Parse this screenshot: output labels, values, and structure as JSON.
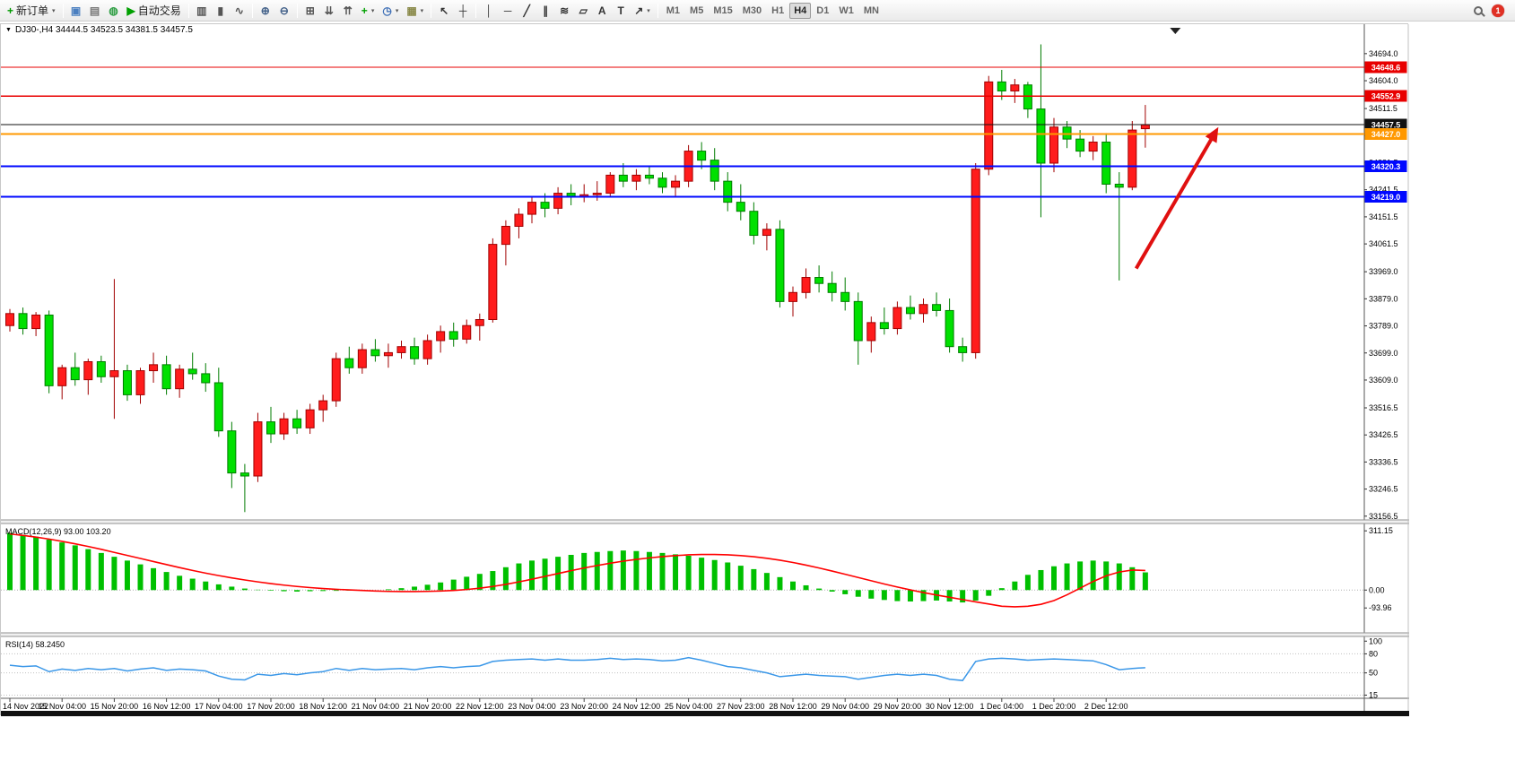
{
  "toolbar": {
    "buttons": [
      {
        "name": "new-order",
        "glyph": "+",
        "glyph_color": "#009900",
        "label": "新订单",
        "arrow": true
      },
      {
        "type": "sep"
      },
      {
        "name": "chart-window",
        "glyph": "▣",
        "glyph_color": "#4a7fc0"
      },
      {
        "name": "profiles",
        "glyph": "▤",
        "glyph_color": "#777777"
      },
      {
        "name": "market-watch",
        "glyph": "◍",
        "glyph_color": "#2f9e44"
      },
      {
        "name": "auto-trading",
        "glyph": "▶",
        "glyph_color": "#00a000",
        "label": "自动交易"
      },
      {
        "type": "sep"
      },
      {
        "name": "bar-chart-mode",
        "glyph": "▥",
        "glyph_color": "#555555"
      },
      {
        "name": "candlestick-mode",
        "glyph": "▮",
        "glyph_color": "#555555"
      },
      {
        "name": "line-chart-mode",
        "glyph": "∿",
        "glyph_color": "#555555"
      },
      {
        "type": "sep"
      },
      {
        "name": "zoom-in",
        "glyph": "⊕",
        "glyph_color": "#44628a"
      },
      {
        "name": "zoom-out",
        "glyph": "⊖",
        "glyph_color": "#44628a"
      },
      {
        "type": "sep"
      },
      {
        "name": "tile-windows",
        "glyph": "⊞",
        "glyph_color": "#555555"
      },
      {
        "name": "arrange-ascending",
        "glyph": "⇊",
        "glyph_color": "#555555"
      },
      {
        "name": "arrange-descending",
        "glyph": "⇈",
        "glyph_color": "#555555"
      },
      {
        "name": "indicators",
        "glyph": "+",
        "glyph_color": "#00a000",
        "arrow": true
      },
      {
        "name": "periods",
        "glyph": "◷",
        "glyph_color": "#3b6db5",
        "arrow": true
      },
      {
        "name": "templates",
        "glyph": "▦",
        "glyph_color": "#8a8a4a",
        "arrow": true
      },
      {
        "type": "sep"
      },
      {
        "name": "cursor",
        "glyph": "↖",
        "glyph_color": "#333333"
      },
      {
        "name": "crosshair",
        "glyph": "┼",
        "glyph_color": "#333333"
      },
      {
        "type": "sep"
      },
      {
        "name": "vertical-line",
        "glyph": "│",
        "glyph_color": "#333333"
      },
      {
        "name": "horizontal-line",
        "glyph": "─",
        "glyph_color": "#333333"
      },
      {
        "name": "trendline",
        "glyph": "╱",
        "glyph_color": "#333333"
      },
      {
        "name": "channel",
        "glyph": "∥",
        "glyph_color": "#333333"
      },
      {
        "name": "fibonacci",
        "glyph": "≋",
        "glyph_color": "#333333"
      },
      {
        "name": "shapes",
        "glyph": "▱",
        "glyph_color": "#333333"
      },
      {
        "name": "text",
        "glyph": "A",
        "glyph_color": "#333333"
      },
      {
        "name": "text-label",
        "glyph": "T",
        "glyph_color": "#333333"
      },
      {
        "name": "arrows-tool",
        "glyph": "↗",
        "glyph_color": "#333333",
        "arrow": true
      },
      {
        "type": "sep"
      }
    ],
    "timeframes": [
      "M1",
      "M5",
      "M15",
      "M30",
      "H1",
      "H4",
      "D1",
      "W1",
      "MN"
    ],
    "active_timeframe": "H4",
    "notification_count": "1"
  },
  "chart_header": {
    "ohlc_line": "DJ30-,H4  34444.5 34523.5 34381.5 34457.5"
  },
  "chart_data": {
    "type": "candlestick",
    "symbol": "DJ30-",
    "period": "H4",
    "ohlc": {
      "open": 34444.5,
      "high": 34523.5,
      "low": 34381.5,
      "close": 34457.5
    },
    "main": {
      "ylim": [
        33147,
        34774
      ],
      "up_fill": "#ff1c1c",
      "up_stroke": "#a00000",
      "down_fill": "#00e000",
      "down_stroke": "#007c00",
      "candles": [
        [
          33790,
          33845,
          33770,
          33830
        ],
        [
          33830,
          33850,
          33760,
          33780
        ],
        [
          33780,
          33835,
          33755,
          33825
        ],
        [
          33825,
          33840,
          33565,
          33590
        ],
        [
          33590,
          33660,
          33545,
          33650
        ],
        [
          33650,
          33700,
          33590,
          33610
        ],
        [
          33610,
          33680,
          33560,
          33670
        ],
        [
          33670,
          33690,
          33600,
          33620
        ],
        [
          33620,
          33945,
          33480,
          33640
        ],
        [
          33640,
          33660,
          33540,
          33560
        ],
        [
          33560,
          33650,
          33530,
          33640
        ],
        [
          33640,
          33700,
          33600,
          33660
        ],
        [
          33660,
          33690,
          33560,
          33580
        ],
        [
          33580,
          33660,
          33550,
          33645
        ],
        [
          33645,
          33700,
          33610,
          33630
        ],
        [
          33630,
          33665,
          33570,
          33600
        ],
        [
          33600,
          33650,
          33420,
          33440
        ],
        [
          33440,
          33470,
          33250,
          33300
        ],
        [
          33300,
          33330,
          33170,
          33290
        ],
        [
          33290,
          33500,
          33270,
          33470
        ],
        [
          33470,
          33520,
          33400,
          33430
        ],
        [
          33430,
          33500,
          33410,
          33480
        ],
        [
          33480,
          33510,
          33430,
          33450
        ],
        [
          33450,
          33530,
          33430,
          33510
        ],
        [
          33510,
          33560,
          33470,
          33540
        ],
        [
          33540,
          33700,
          33520,
          33680
        ],
        [
          33680,
          33720,
          33630,
          33650
        ],
        [
          33650,
          33730,
          33630,
          33710
        ],
        [
          33710,
          33745,
          33670,
          33690
        ],
        [
          33690,
          33730,
          33650,
          33700
        ],
        [
          33700,
          33740,
          33680,
          33720
        ],
        [
          33720,
          33750,
          33660,
          33680
        ],
        [
          33680,
          33760,
          33660,
          33740
        ],
        [
          33740,
          33790,
          33700,
          33770
        ],
        [
          33770,
          33800,
          33720,
          33745
        ],
        [
          33745,
          33810,
          33730,
          33790
        ],
        [
          33790,
          33830,
          33740,
          33810
        ],
        [
          33810,
          34080,
          33800,
          34060
        ],
        [
          34060,
          34140,
          33990,
          34120
        ],
        [
          34120,
          34180,
          34080,
          34160
        ],
        [
          34160,
          34220,
          34130,
          34200
        ],
        [
          34200,
          34230,
          34150,
          34180
        ],
        [
          34180,
          34250,
          34160,
          34230
        ],
        [
          34230,
          34260,
          34190,
          34220
        ],
        [
          34220,
          34260,
          34200,
          34225
        ],
        [
          34225,
          34270,
          34205,
          34230
        ],
        [
          34230,
          34300,
          34220,
          34290
        ],
        [
          34290,
          34330,
          34250,
          34270
        ],
        [
          34270,
          34310,
          34240,
          34290
        ],
        [
          34290,
          34320,
          34260,
          34280
        ],
        [
          34280,
          34300,
          34230,
          34250
        ],
        [
          34250,
          34290,
          34220,
          34270
        ],
        [
          34270,
          34390,
          34250,
          34370
        ],
        [
          34370,
          34400,
          34310,
          34340
        ],
        [
          34340,
          34380,
          34240,
          34270
        ],
        [
          34270,
          34300,
          34170,
          34200
        ],
        [
          34200,
          34260,
          34140,
          34170
        ],
        [
          34170,
          34200,
          34060,
          34090
        ],
        [
          34090,
          34130,
          34040,
          34110
        ],
        [
          34110,
          34140,
          33850,
          33870
        ],
        [
          33870,
          33920,
          33820,
          33900
        ],
        [
          33900,
          33980,
          33880,
          33950
        ],
        [
          33950,
          33990,
          33900,
          33930
        ],
        [
          33930,
          33970,
          33870,
          33900
        ],
        [
          33900,
          33950,
          33840,
          33870
        ],
        [
          33870,
          33900,
          33660,
          33740
        ],
        [
          33740,
          33820,
          33700,
          33800
        ],
        [
          33800,
          33850,
          33760,
          33780
        ],
        [
          33780,
          33870,
          33760,
          33850
        ],
        [
          33850,
          33890,
          33810,
          33830
        ],
        [
          33830,
          33880,
          33800,
          33860
        ],
        [
          33860,
          33900,
          33820,
          33840
        ],
        [
          33840,
          33880,
          33700,
          33720
        ],
        [
          33720,
          33750,
          33670,
          33700
        ],
        [
          33700,
          34330,
          33680,
          34310
        ],
        [
          34310,
          34620,
          34290,
          34600
        ],
        [
          34600,
          34640,
          34540,
          34570
        ],
        [
          34570,
          34610,
          34530,
          34590
        ],
        [
          34590,
          34600,
          34480,
          34510
        ],
        [
          34510,
          34725,
          34150,
          34330
        ],
        [
          34330,
          34480,
          34300,
          34450
        ],
        [
          34450,
          34470,
          34380,
          34410
        ],
        [
          34410,
          34440,
          34350,
          34370
        ],
        [
          34370,
          34420,
          34340,
          34400
        ],
        [
          34400,
          34430,
          34230,
          34260
        ],
        [
          34260,
          34300,
          33940,
          34250
        ],
        [
          34250,
          34470,
          34240,
          34440
        ],
        [
          34444.5,
          34523.5,
          34381.5,
          34457.5
        ]
      ],
      "y_ticks": [
        {
          "t": "34694.0",
          "v": 34694.0
        },
        {
          "t": "34604.0",
          "v": 34604.0
        },
        {
          "t": "34511.5",
          "v": 34511.5
        },
        {
          "t": "34421.5",
          "v": 34421.5
        },
        {
          "t": "34331.5",
          "v": 34331.5
        },
        {
          "t": "34241.5",
          "v": 34241.5
        },
        {
          "t": "34151.5",
          "v": 34151.5
        },
        {
          "t": "34061.5",
          "v": 34061.5
        },
        {
          "t": "33969.0",
          "v": 33969.0
        },
        {
          "t": "33879.0",
          "v": 33879.0
        },
        {
          "t": "33789.0",
          "v": 33789.0
        },
        {
          "t": "33699.0",
          "v": 33699.0
        },
        {
          "t": "33609.0",
          "v": 33609.0
        },
        {
          "t": "33516.5",
          "v": 33516.5
        },
        {
          "t": "33426.5",
          "v": 33426.5
        },
        {
          "t": "33336.5",
          "v": 33336.5
        },
        {
          "t": "33246.5",
          "v": 33246.5
        },
        {
          "t": "33156.5",
          "v": 33156.5
        }
      ],
      "hlines": [
        {
          "price": 34648.6,
          "label": "34648.6",
          "color": "#e80000",
          "width": 1.3
        },
        {
          "price": 34552.9,
          "label": "34552.9",
          "color": "#e80000",
          "width": 1.3
        },
        {
          "price": 34457.5,
          "label": "34457.5",
          "color": "#111111",
          "width": 1
        },
        {
          "price": 34427.0,
          "label": "34427.0",
          "color": "#ff9800",
          "width": 2.2
        },
        {
          "price": 34320.3,
          "label": "34320.3",
          "color": "#0008ff",
          "width": 2
        },
        {
          "price": 34219.0,
          "label": "34219.0",
          "color": "#0008ff",
          "width": 2
        }
      ],
      "arrow": {
        "from": {
          "bar": 86.3,
          "price": 33980
        },
        "to": {
          "bar": 92.6,
          "price": 34450
        },
        "color": "#e01010"
      },
      "shift_marker_bar": 89.3
    },
    "time_axis": {
      "bars_per_label": 4,
      "labels": [
        "14 Nov 2022",
        "15 Nov 04:00",
        "15 Nov 20:00",
        "16 Nov 12:00",
        "17 Nov 04:00",
        "17 Nov 20:00",
        "18 Nov 12:00",
        "21 Nov 04:00",
        "21 Nov 20:00",
        "22 Nov 12:00",
        "23 Nov 04:00",
        "23 Nov 20:00",
        "24 Nov 12:00",
        "25 Nov 04:00",
        "27 Nov 23:00",
        "28 Nov 12:00",
        "29 Nov 04:00",
        "29 Nov 20:00",
        "30 Nov 12:00",
        "1 Dec 04:00",
        "1 Dec 20:00",
        "2 Dec 12:00"
      ]
    },
    "macd": {
      "label": "MACD(12,26,9) 93.00 103.20",
      "ylim": [
        -220,
        345
      ],
      "hist_color": "#00c000",
      "signal_color": "#ff0000",
      "histogram": [
        300,
        290,
        280,
        265,
        250,
        235,
        215,
        195,
        175,
        155,
        135,
        115,
        95,
        75,
        60,
        45,
        30,
        18,
        8,
        2,
        -3,
        -6,
        -8,
        -6,
        -5,
        -4,
        -3,
        -2,
        0,
        4,
        10,
        18,
        28,
        40,
        55,
        70,
        85,
        100,
        120,
        140,
        155,
        165,
        175,
        185,
        195,
        200,
        205,
        208,
        205,
        200,
        195,
        188,
        180,
        170,
        158,
        145,
        128,
        110,
        90,
        68,
        45,
        25,
        8,
        -8,
        -22,
        -35,
        -45,
        -52,
        -58,
        -60,
        -58,
        -55,
        -60,
        -65,
        -55,
        -30,
        10,
        45,
        80,
        105,
        125,
        140,
        150,
        155,
        150,
        140,
        120,
        93
      ],
      "signal": [
        295,
        287,
        278,
        268,
        256,
        243,
        229,
        214,
        198,
        182,
        166,
        150,
        134,
        118,
        103,
        89,
        76,
        64,
        53,
        43,
        34,
        26,
        19,
        13,
        8,
        4,
        1,
        -2,
        -5,
        -7,
        -8,
        -8,
        -7,
        -5,
        -2,
        3,
        10,
        19,
        30,
        43,
        57,
        72,
        87,
        102,
        116,
        129,
        141,
        152,
        161,
        169,
        176,
        181,
        185,
        187,
        187,
        185,
        181,
        175,
        167,
        157,
        145,
        131,
        116,
        100,
        83,
        66,
        49,
        32,
        16,
        1,
        -13,
        -26,
        -38,
        -50,
        -62,
        -73,
        -85,
        -88,
        -85,
        -75,
        -55,
        -25,
        10,
        45,
        75,
        95,
        105,
        103
      ],
      "y_ticks": [
        {
          "t": "311.15",
          "v": 311.15
        },
        {
          "t": "0.00",
          "v": 0
        },
        {
          "t": "-93.96",
          "v": -93.96
        }
      ]
    },
    "rsi": {
      "label": "RSI(14) 58.2450",
      "ylim": [
        10,
        106
      ],
      "line_color": "#3a97e8",
      "levels": [
        80,
        50,
        15
      ],
      "values": [
        62,
        60,
        61,
        52,
        56,
        54,
        57,
        55,
        57,
        53,
        56,
        58,
        54,
        56,
        55,
        53,
        45,
        40,
        39,
        48,
        46,
        49,
        47,
        50,
        52,
        57,
        54,
        57,
        55,
        56,
        57,
        55,
        58,
        60,
        58,
        60,
        61,
        68,
        70,
        71,
        72,
        70,
        72,
        70,
        70,
        71,
        73,
        71,
        72,
        71,
        69,
        70,
        74,
        70,
        65,
        60,
        58,
        54,
        50,
        44,
        46,
        48,
        46,
        45,
        44,
        40,
        43,
        46,
        48,
        46,
        48,
        46,
        40,
        38,
        68,
        72,
        73,
        72,
        70,
        71,
        72,
        71,
        70,
        69,
        63,
        55,
        57,
        58.245
      ],
      "y_ticks": [
        {
          "t": "100",
          "v": 100
        },
        {
          "t": "80",
          "v": 80
        },
        {
          "t": "50",
          "v": 50
        },
        {
          "t": "15",
          "v": 15
        }
      ]
    }
  }
}
